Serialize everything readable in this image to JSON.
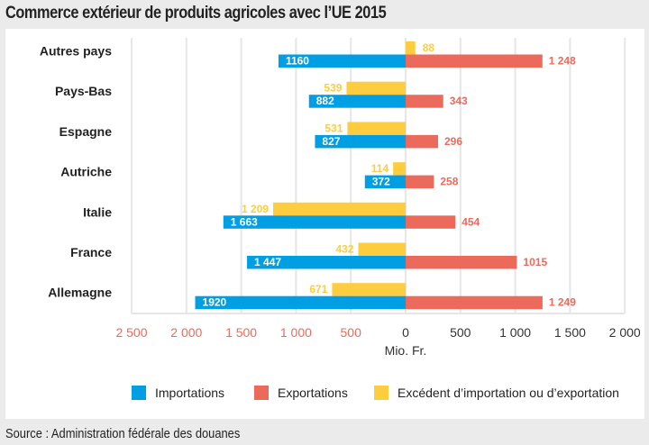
{
  "title": "Commerce extérieur de produits agricoles avec l’UE 2015",
  "source": "Source : Administration fédérale des douanes",
  "colors": {
    "imports": "#009fe3",
    "exports": "#ec6a5c",
    "surplus": "#fecd3f",
    "negative_tick": "#ec6a5c",
    "positive_tick": "#333333",
    "grid": "#e6e6e6"
  },
  "chart_data": {
    "type": "bar",
    "orientation": "horizontal-diverging",
    "title": "Commerce extérieur de produits agricoles avec l’UE 2015",
    "xlabel": "Mio. Fr.",
    "ylabel": "",
    "xlim": [
      -2500,
      2000
    ],
    "x_ticks": [
      -2500,
      -2000,
      -1500,
      -1000,
      -500,
      0,
      500,
      1000,
      1500,
      2000
    ],
    "x_tick_labels": [
      "2 500",
      "2 000",
      "1 500",
      "1 000",
      "500",
      "0",
      "500",
      "1 000",
      "1 500",
      "2 000"
    ],
    "grid": true,
    "legend_position": "bottom-right",
    "categories": [
      "Autres pays",
      "Pays-Bas",
      "Espagne",
      "Autriche",
      "Italie",
      "France",
      "Allemagne"
    ],
    "series": [
      {
        "name": "Importations",
        "direction": "negative",
        "values": [
          1160,
          882,
          827,
          372,
          1663,
          1447,
          1920
        ],
        "labels": [
          "1160",
          "882",
          "827",
          "372",
          "1 663",
          "1 447",
          "1920"
        ]
      },
      {
        "name": "Exportations",
        "direction": "positive",
        "values": [
          1248,
          343,
          296,
          258,
          454,
          1015,
          1249
        ],
        "labels": [
          "1 248",
          "343",
          "296",
          "258",
          "454",
          "1015",
          "1 249"
        ]
      },
      {
        "name": "Excédent d’importation ou d’exportation",
        "values": [
          88,
          -539,
          -531,
          -114,
          -1209,
          -432,
          -671
        ],
        "labels": [
          "88",
          "539",
          "531",
          "114",
          "1 209",
          "432",
          "671"
        ]
      }
    ]
  }
}
